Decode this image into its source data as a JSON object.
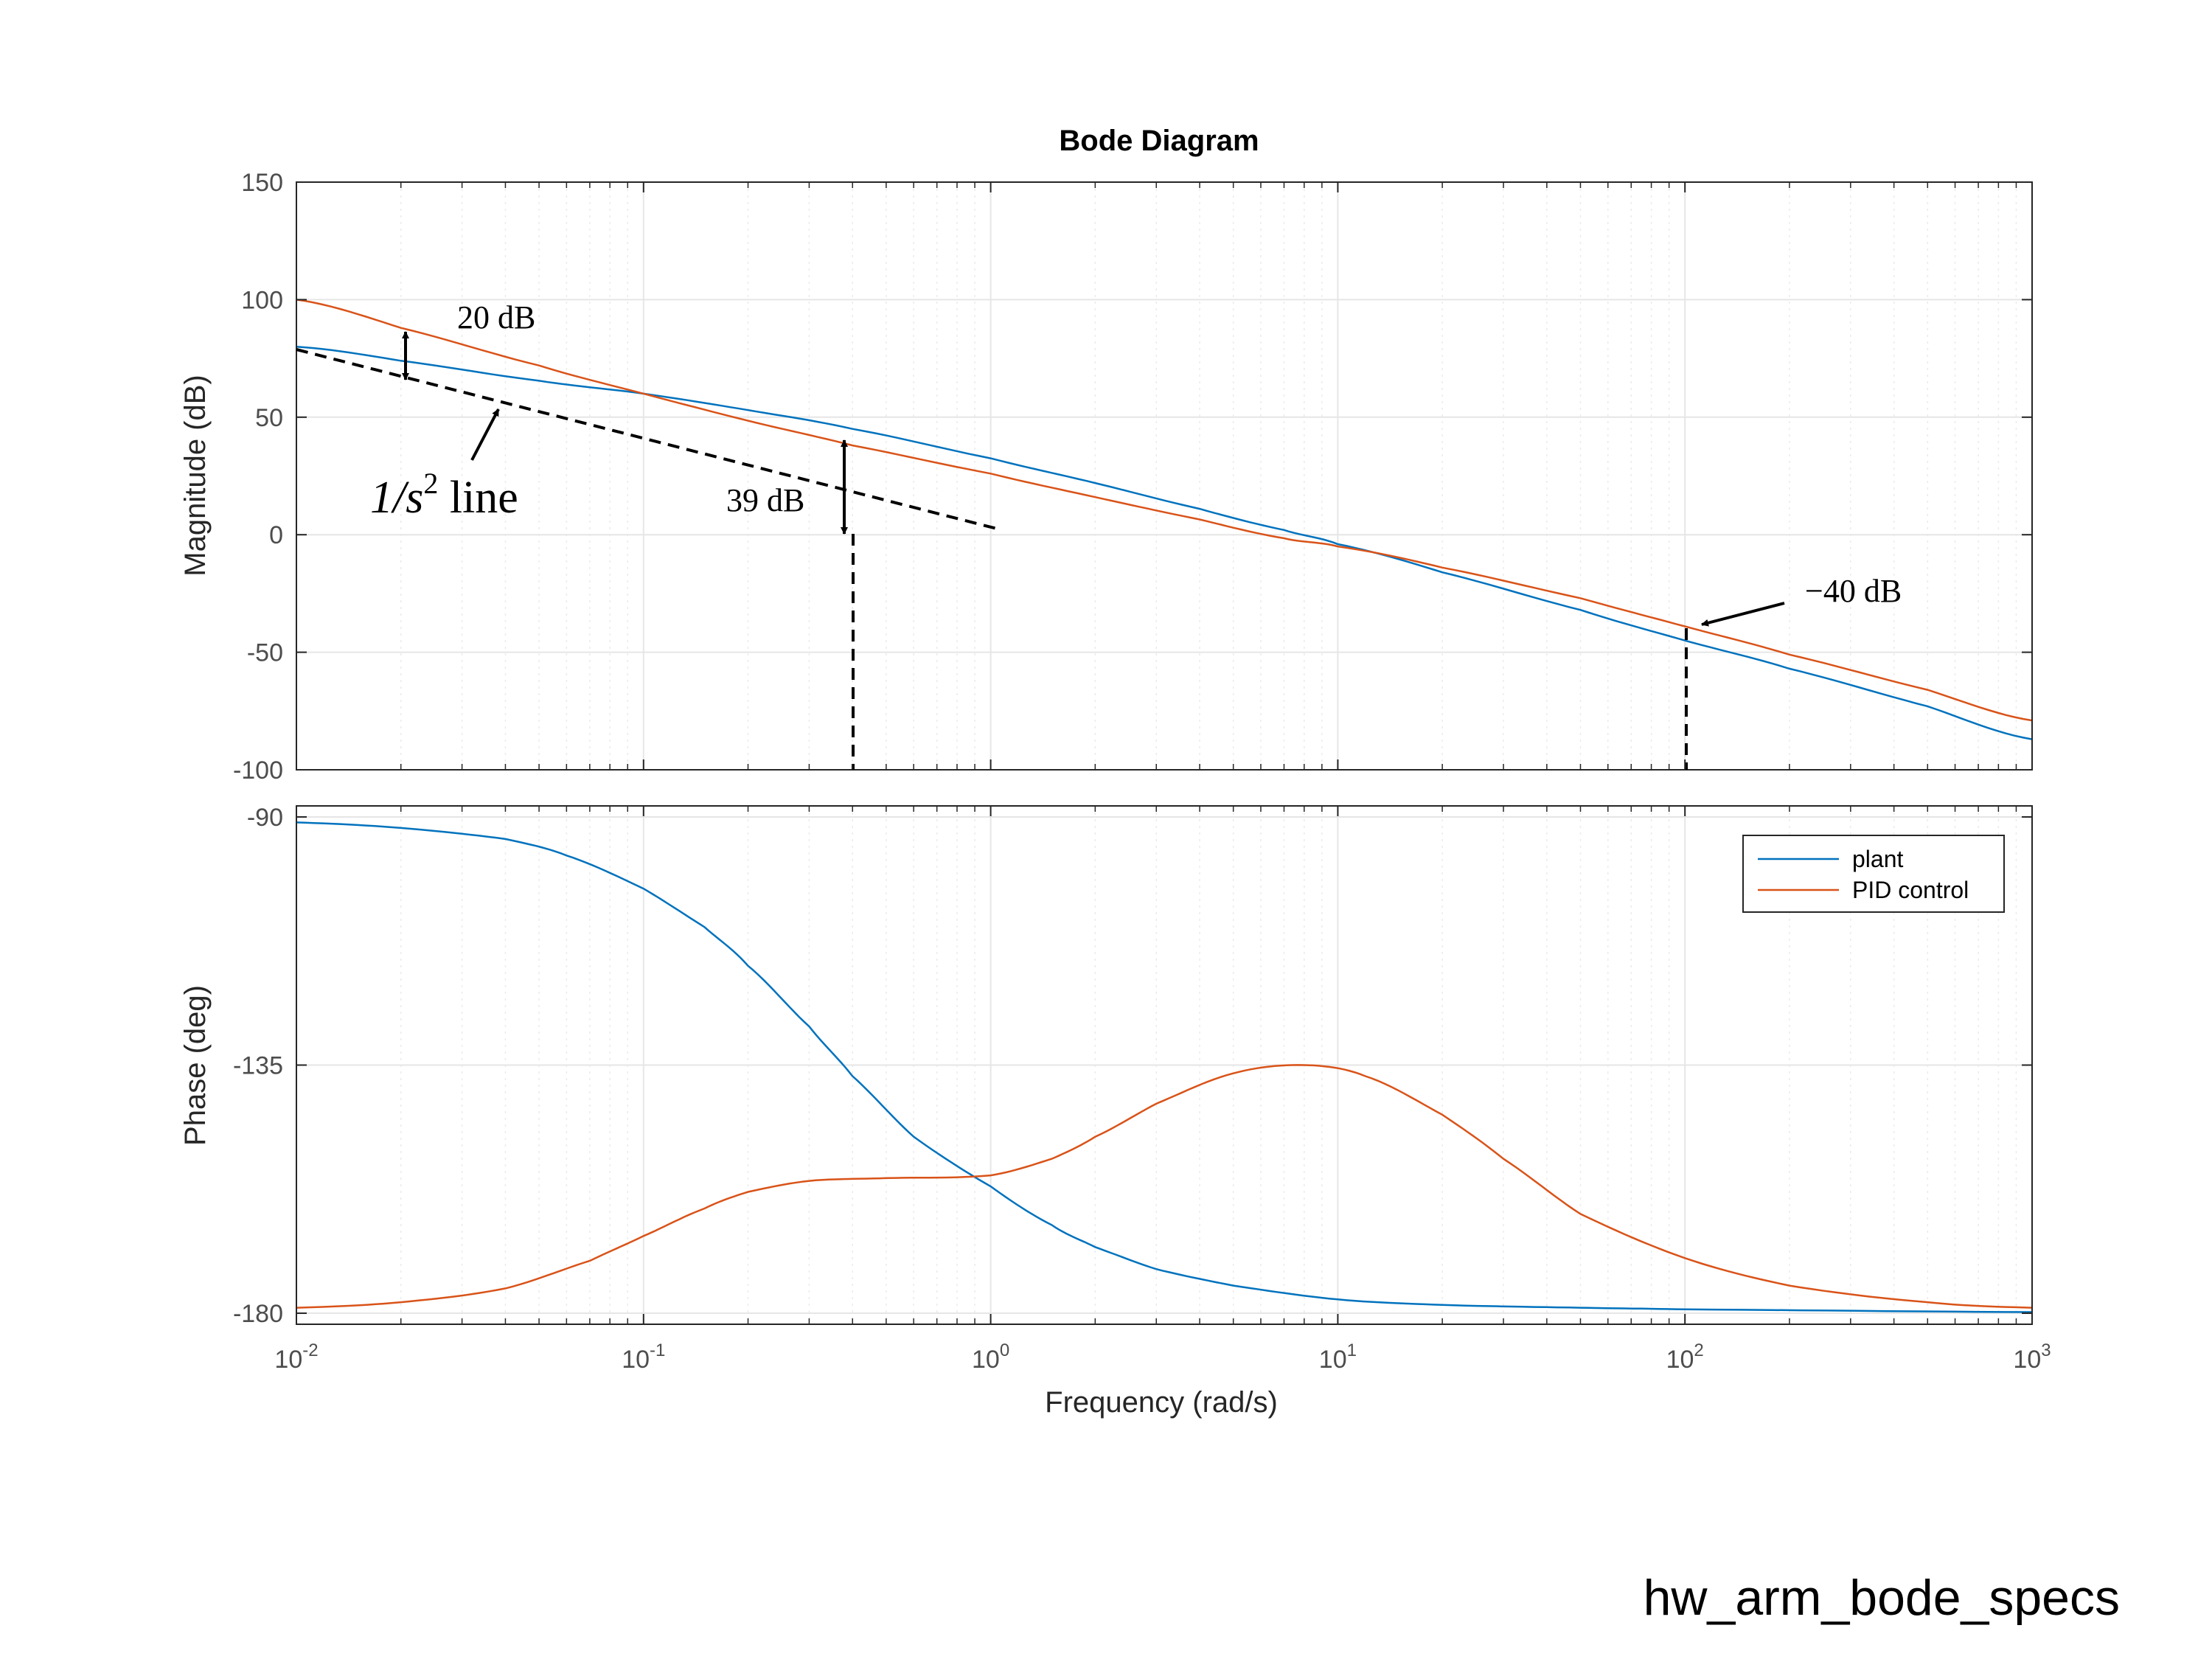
{
  "colors": {
    "plant": "#0072BD",
    "pid": "#D95319",
    "grid": "#e6e6e6",
    "axis": "#262626"
  },
  "footer_label": "hw_arm_bode_specs",
  "chart_data": {
    "type": "line",
    "title": "Bode Diagram",
    "xlabel": "Frequency  (rad/s)",
    "xscale": "log",
    "xlim": [
      0.01,
      1000
    ],
    "x_ticks": [
      {
        "value": 0.01,
        "base": "10",
        "exp": "-2"
      },
      {
        "value": 0.1,
        "base": "10",
        "exp": "-1"
      },
      {
        "value": 1,
        "base": "10",
        "exp": "0"
      },
      {
        "value": 10,
        "base": "10",
        "exp": "1"
      },
      {
        "value": 100,
        "base": "10",
        "exp": "2"
      },
      {
        "value": 1000,
        "base": "10",
        "exp": "3"
      }
    ],
    "grid": true,
    "legend_placement": "top-right",
    "magnitude": {
      "ylabel": "Magnitude (dB)",
      "ylim": [
        -100,
        150
      ],
      "yticks": [
        "150",
        "100",
        "50",
        "0",
        "-50",
        "-100"
      ],
      "series": [
        {
          "name": "plant",
          "color": "#0072BD",
          "x": [
            0.01,
            0.02,
            0.05,
            0.1,
            0.2,
            0.4,
            1,
            2,
            4,
            7,
            10,
            20,
            50,
            100,
            200,
            500,
            1000
          ],
          "y": [
            80,
            74,
            65.5,
            60,
            53,
            45,
            32.5,
            22,
            11,
            2,
            -4,
            -16,
            -32,
            -45,
            -57,
            -73,
            -87
          ]
        },
        {
          "name": "PID control",
          "color": "#D95319",
          "x": [
            0.01,
            0.02,
            0.05,
            0.1,
            0.2,
            0.4,
            1,
            2,
            4,
            7,
            10,
            20,
            50,
            100,
            200,
            500,
            1000
          ],
          "y": [
            100,
            88,
            72,
            60,
            48.5,
            38,
            26,
            16,
            6.5,
            -1.5,
            -5,
            -14,
            -27,
            -39,
            -51,
            -66,
            -79
          ]
        }
      ]
    },
    "phase": {
      "ylabel": "Phase (deg)",
      "ylim": [
        -182,
        -88
      ],
      "yticks": [
        {
          "value": -90,
          "label": "-90"
        },
        {
          "value": -135,
          "label": "-135"
        },
        {
          "value": -180,
          "label": "-180"
        }
      ],
      "series": [
        {
          "name": "plant",
          "color": "#0072BD",
          "x": [
            0.01,
            0.02,
            0.04,
            0.06,
            0.1,
            0.15,
            0.2,
            0.3,
            0.4,
            0.6,
            1,
            1.5,
            2,
            3,
            5,
            10,
            20,
            50,
            100,
            1000
          ],
          "y": [
            -91,
            -92,
            -94,
            -97,
            -103,
            -110,
            -117,
            -128,
            -137,
            -148,
            -157,
            -164,
            -168,
            -172,
            -175,
            -177.5,
            -178.5,
            -179,
            -179.3,
            -179.8
          ]
        },
        {
          "name": "PID control",
          "color": "#D95319",
          "x": [
            0.01,
            0.02,
            0.04,
            0.07,
            0.1,
            0.15,
            0.2,
            0.3,
            0.5,
            1,
            1.5,
            2,
            3,
            5,
            8,
            12,
            20,
            30,
            50,
            100,
            200,
            500,
            1000
          ],
          "y": [
            -179,
            -178,
            -175.5,
            -170.5,
            -166,
            -161,
            -158,
            -156,
            -155.5,
            -155,
            -152,
            -148,
            -142,
            -136.5,
            -135,
            -137,
            -144,
            -152,
            -162,
            -170,
            -175,
            -178,
            -179
          ]
        }
      ]
    },
    "annotations": [
      {
        "id": "ann-20db",
        "text": "20 dB"
      },
      {
        "id": "ann-39db",
        "text": "39 dB"
      },
      {
        "id": "ann-minus40db",
        "text": "−40 dB"
      },
      {
        "id": "ann-1s2",
        "text_base": "1/s",
        "text_exp": "2",
        "text_rest": " line"
      }
    ]
  }
}
